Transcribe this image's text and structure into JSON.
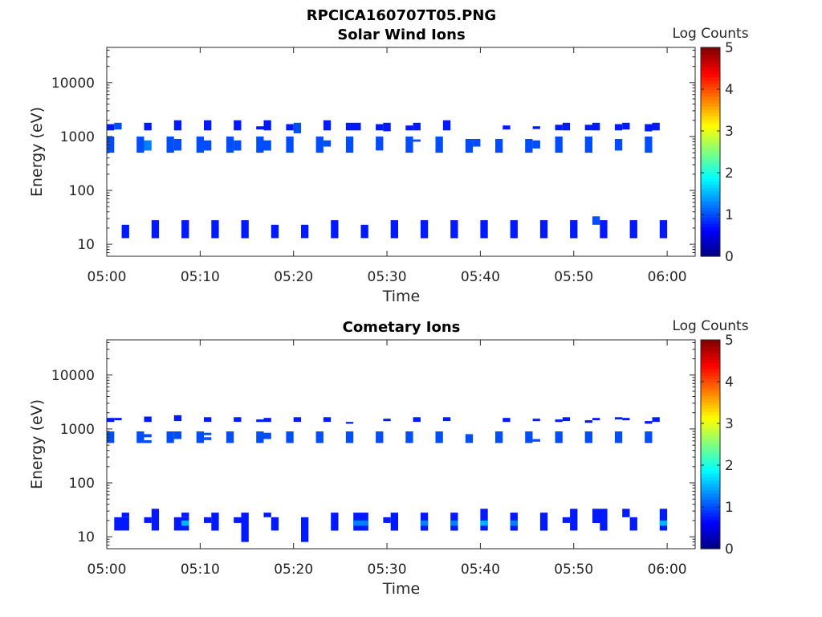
{
  "figure_title": "RPCICA160707T05.PNG",
  "colors": {
    "low": "#00008f",
    "mid": "#0b1fd6",
    "bright": "#1846ff",
    "axis": "#262626"
  },
  "chart_data": [
    {
      "type": "heatmap",
      "title": "Solar Wind Ions",
      "xlabel": "Time",
      "ylabel": "Energy (eV)",
      "y_scale": "log",
      "ylim": [
        6,
        45000
      ],
      "y_ticks": [
        10,
        100,
        1000,
        10000
      ],
      "y_tick_labels": [
        "10",
        "100",
        "1000",
        "10000"
      ],
      "x_range_minutes": [
        0,
        63
      ],
      "x_ticks": [
        0,
        10,
        20,
        30,
        40,
        50,
        60
      ],
      "x_tick_labels": [
        "05:00",
        "05:10",
        "05:20",
        "05:30",
        "05:40",
        "05:50",
        "06:00"
      ],
      "colorbar": {
        "label": "Log Counts",
        "min": 0,
        "max": 5,
        "ticks": [
          "0",
          "1",
          "2",
          "3",
          "4",
          "5"
        ],
        "colormap": "jet"
      },
      "cells": [
        [
          0.0,
          0.8,
          1300,
          1700,
          0.15
        ],
        [
          0.8,
          1.6,
          1350,
          1800,
          0.2
        ],
        [
          0.0,
          0.8,
          500,
          1000,
          0.2
        ],
        [
          3.2,
          4.0,
          500,
          1000,
          0.2
        ],
        [
          4.0,
          4.8,
          550,
          850,
          0.25
        ],
        [
          4.0,
          4.8,
          1300,
          1800,
          0.15
        ],
        [
          6.4,
          7.2,
          500,
          1000,
          0.2
        ],
        [
          7.2,
          8.0,
          1300,
          2000,
          0.15
        ],
        [
          7.2,
          8.0,
          550,
          900,
          0.2
        ],
        [
          9.6,
          10.4,
          500,
          1000,
          0.2
        ],
        [
          10.4,
          11.2,
          1300,
          2000,
          0.15
        ],
        [
          10.4,
          11.2,
          550,
          850,
          0.2
        ],
        [
          12.8,
          13.6,
          500,
          1000,
          0.2
        ],
        [
          13.6,
          14.4,
          1300,
          2000,
          0.15
        ],
        [
          13.6,
          14.4,
          550,
          850,
          0.2
        ],
        [
          16.0,
          16.8,
          1350,
          1550,
          0.15
        ],
        [
          16.0,
          16.8,
          500,
          1000,
          0.2
        ],
        [
          16.8,
          17.6,
          1300,
          2000,
          0.15
        ],
        [
          16.8,
          17.6,
          550,
          850,
          0.2
        ],
        [
          19.2,
          20.0,
          500,
          1000,
          0.2
        ],
        [
          19.2,
          20.0,
          1300,
          1700,
          0.15
        ],
        [
          20.0,
          20.8,
          1150,
          1800,
          0.2
        ],
        [
          22.4,
          23.2,
          500,
          1000,
          0.2
        ],
        [
          23.2,
          24.0,
          1300,
          2000,
          0.15
        ],
        [
          23.2,
          24.0,
          650,
          850,
          0.2
        ],
        [
          25.6,
          26.4,
          500,
          1000,
          0.2
        ],
        [
          25.6,
          27.2,
          1300,
          1800,
          0.15
        ],
        [
          28.8,
          29.6,
          1300,
          1700,
          0.15
        ],
        [
          28.8,
          29.6,
          550,
          1000,
          0.2
        ],
        [
          29.6,
          30.4,
          1250,
          1800,
          0.15
        ],
        [
          32.0,
          32.8,
          1300,
          1600,
          0.15
        ],
        [
          32.0,
          32.8,
          500,
          1000,
          0.2
        ],
        [
          32.8,
          33.6,
          1300,
          1800,
          0.15
        ],
        [
          32.8,
          33.6,
          800,
          880,
          0.2
        ],
        [
          35.2,
          36.0,
          500,
          1000,
          0.2
        ],
        [
          36.0,
          36.8,
          1300,
          2000,
          0.15
        ],
        [
          38.4,
          39.2,
          500,
          900,
          0.2
        ],
        [
          39.2,
          40.0,
          650,
          900,
          0.2
        ],
        [
          41.6,
          42.4,
          500,
          900,
          0.2
        ],
        [
          42.4,
          43.2,
          1350,
          1600,
          0.15
        ],
        [
          44.8,
          45.6,
          500,
          900,
          0.2
        ],
        [
          45.6,
          46.4,
          1380,
          1550,
          0.15
        ],
        [
          45.6,
          46.4,
          600,
          850,
          0.2
        ],
        [
          48.0,
          48.8,
          500,
          1000,
          0.2
        ],
        [
          48.0,
          48.8,
          1300,
          1650,
          0.15
        ],
        [
          48.8,
          49.6,
          1300,
          1800,
          0.15
        ],
        [
          51.2,
          52.0,
          500,
          1000,
          0.2
        ],
        [
          51.2,
          52.0,
          1300,
          1650,
          0.15
        ],
        [
          52.0,
          52.8,
          1300,
          1800,
          0.15
        ],
        [
          54.4,
          55.2,
          1300,
          1700,
          0.15
        ],
        [
          54.4,
          55.2,
          550,
          900,
          0.2
        ],
        [
          55.2,
          56.0,
          1350,
          1800,
          0.15
        ],
        [
          57.6,
          58.4,
          1250,
          1700,
          0.15
        ],
        [
          57.6,
          58.4,
          500,
          1000,
          0.2
        ],
        [
          58.4,
          59.2,
          1300,
          1800,
          0.15
        ],
        [
          1.6,
          2.4,
          13,
          23,
          0.15
        ],
        [
          4.8,
          5.6,
          13,
          28,
          0.15
        ],
        [
          8.0,
          8.8,
          13,
          28,
          0.15
        ],
        [
          11.2,
          12.0,
          13,
          28,
          0.15
        ],
        [
          14.4,
          15.2,
          13,
          28,
          0.15
        ],
        [
          17.6,
          18.4,
          13,
          23,
          0.15
        ],
        [
          20.8,
          21.6,
          13,
          23,
          0.15
        ],
        [
          24.0,
          24.8,
          13,
          28,
          0.15
        ],
        [
          27.2,
          28.0,
          13,
          23,
          0.15
        ],
        [
          30.4,
          31.2,
          13,
          28,
          0.15
        ],
        [
          33.6,
          34.4,
          13,
          28,
          0.15
        ],
        [
          36.8,
          37.6,
          13,
          28,
          0.15
        ],
        [
          40.0,
          40.8,
          13,
          28,
          0.15
        ],
        [
          43.2,
          44.0,
          13,
          28,
          0.15
        ],
        [
          46.4,
          47.2,
          13,
          28,
          0.15
        ],
        [
          49.6,
          50.4,
          13,
          28,
          0.15
        ],
        [
          52.0,
          52.8,
          23,
          33,
          0.2
        ],
        [
          52.8,
          53.6,
          13,
          28,
          0.15
        ],
        [
          56.0,
          56.8,
          13,
          28,
          0.15
        ],
        [
          59.2,
          60.0,
          13,
          28,
          0.15
        ]
      ]
    },
    {
      "type": "heatmap",
      "title": "Cometary Ions",
      "xlabel": "Time",
      "ylabel": "Energy (eV)",
      "y_scale": "log",
      "ylim": [
        6,
        45000
      ],
      "y_ticks": [
        10,
        100,
        1000,
        10000
      ],
      "y_tick_labels": [
        "10",
        "100",
        "1000",
        "10000"
      ],
      "x_range_minutes": [
        0,
        63
      ],
      "x_ticks": [
        0,
        10,
        20,
        30,
        40,
        50,
        60
      ],
      "x_tick_labels": [
        "05:00",
        "05:10",
        "05:20",
        "05:30",
        "05:40",
        "05:50",
        "06:00"
      ],
      "colorbar": {
        "label": "Log Counts",
        "min": 0,
        "max": 5,
        "ticks": [
          "0",
          "1",
          "2",
          "3",
          "4",
          "5"
        ],
        "colormap": "jet"
      },
      "cells": [
        [
          0.0,
          0.8,
          1350,
          1600,
          0.15
        ],
        [
          0.8,
          1.6,
          1450,
          1600,
          0.15
        ],
        [
          0.0,
          0.8,
          550,
          900,
          0.2
        ],
        [
          3.2,
          4.0,
          550,
          900,
          0.2
        ],
        [
          4.0,
          4.8,
          700,
          800,
          0.2
        ],
        [
          4.0,
          4.8,
          550,
          620,
          0.2
        ],
        [
          4.0,
          4.8,
          1350,
          1700,
          0.15
        ],
        [
          6.4,
          7.2,
          550,
          900,
          0.2
        ],
        [
          7.2,
          8.0,
          1400,
          1800,
          0.15
        ],
        [
          7.2,
          8.0,
          650,
          900,
          0.2
        ],
        [
          9.6,
          10.4,
          550,
          900,
          0.2
        ],
        [
          10.4,
          11.2,
          1350,
          1650,
          0.15
        ],
        [
          10.4,
          11.2,
          770,
          850,
          0.2
        ],
        [
          10.4,
          11.2,
          620,
          700,
          0.2
        ],
        [
          12.8,
          13.6,
          550,
          900,
          0.2
        ],
        [
          13.6,
          14.4,
          1350,
          1650,
          0.15
        ],
        [
          16.0,
          16.8,
          1350,
          1500,
          0.15
        ],
        [
          16.0,
          16.8,
          550,
          900,
          0.2
        ],
        [
          16.8,
          17.6,
          1350,
          1600,
          0.15
        ],
        [
          16.8,
          17.6,
          650,
          850,
          0.2
        ],
        [
          19.2,
          20.0,
          550,
          900,
          0.2
        ],
        [
          20.0,
          20.8,
          1350,
          1650,
          0.15
        ],
        [
          22.4,
          23.2,
          550,
          900,
          0.2
        ],
        [
          23.2,
          24.0,
          1350,
          1650,
          0.15
        ],
        [
          25.6,
          26.4,
          550,
          900,
          0.2
        ],
        [
          25.6,
          26.4,
          1250,
          1350,
          0.15
        ],
        [
          28.8,
          29.6,
          550,
          900,
          0.2
        ],
        [
          29.6,
          30.4,
          1400,
          1550,
          0.15
        ],
        [
          32.0,
          32.8,
          550,
          900,
          0.2
        ],
        [
          32.8,
          33.6,
          1350,
          1650,
          0.15
        ],
        [
          35.2,
          36.0,
          550,
          900,
          0.2
        ],
        [
          36.0,
          36.8,
          1400,
          1650,
          0.15
        ],
        [
          38.4,
          39.2,
          550,
          800,
          0.2
        ],
        [
          41.6,
          42.4,
          550,
          900,
          0.2
        ],
        [
          42.4,
          43.2,
          1350,
          1600,
          0.15
        ],
        [
          44.8,
          45.6,
          550,
          900,
          0.2
        ],
        [
          45.6,
          46.4,
          1400,
          1550,
          0.15
        ],
        [
          45.6,
          46.4,
          580,
          650,
          0.2
        ],
        [
          48.0,
          48.8,
          550,
          900,
          0.2
        ],
        [
          48.0,
          48.8,
          1350,
          1500,
          0.15
        ],
        [
          48.8,
          49.6,
          1400,
          1650,
          0.15
        ],
        [
          51.2,
          52.0,
          550,
          900,
          0.2
        ],
        [
          51.2,
          52.0,
          1300,
          1450,
          0.15
        ],
        [
          52.0,
          52.8,
          1450,
          1600,
          0.15
        ],
        [
          54.4,
          55.2,
          550,
          900,
          0.2
        ],
        [
          54.4,
          55.2,
          1500,
          1650,
          0.15
        ],
        [
          55.2,
          56.0,
          1450,
          1600,
          0.15
        ],
        [
          57.6,
          58.4,
          550,
          900,
          0.2
        ],
        [
          57.6,
          58.4,
          1250,
          1400,
          0.15
        ],
        [
          58.4,
          59.2,
          1350,
          1650,
          0.15
        ],
        [
          0.8,
          2.4,
          13,
          23,
          0.15
        ],
        [
          1.6,
          2.4,
          23,
          28,
          0.15
        ],
        [
          4.0,
          4.8,
          18,
          23,
          0.15
        ],
        [
          4.8,
          5.6,
          13,
          33,
          0.15
        ],
        [
          7.2,
          8.8,
          13,
          23,
          0.15
        ],
        [
          8.0,
          8.8,
          16,
          20,
          0.3
        ],
        [
          8.0,
          8.8,
          23,
          28,
          0.15
        ],
        [
          10.4,
          11.2,
          18,
          23,
          0.15
        ],
        [
          11.2,
          12.0,
          13,
          28,
          0.15
        ],
        [
          13.6,
          14.4,
          18,
          23,
          0.15
        ],
        [
          14.4,
          15.2,
          8,
          28,
          0.15
        ],
        [
          16.8,
          17.6,
          23,
          28,
          0.15
        ],
        [
          17.6,
          18.4,
          13,
          23,
          0.15
        ],
        [
          20.8,
          21.6,
          8,
          23,
          0.15
        ],
        [
          24.0,
          24.8,
          13,
          28,
          0.15
        ],
        [
          26.4,
          28.0,
          13,
          28,
          0.15
        ],
        [
          26.4,
          28.0,
          16,
          20,
          0.25
        ],
        [
          29.6,
          30.4,
          18,
          23,
          0.15
        ],
        [
          30.4,
          31.2,
          13,
          28,
          0.15
        ],
        [
          33.6,
          34.4,
          13,
          28,
          0.15
        ],
        [
          33.6,
          34.4,
          16,
          20,
          0.25
        ],
        [
          36.8,
          37.6,
          13,
          28,
          0.15
        ],
        [
          36.8,
          37.6,
          16,
          20,
          0.25
        ],
        [
          40.0,
          40.8,
          13,
          33,
          0.15
        ],
        [
          40.0,
          40.8,
          16,
          20,
          0.3
        ],
        [
          43.2,
          44.0,
          13,
          28,
          0.15
        ],
        [
          43.2,
          44.0,
          16,
          20,
          0.25
        ],
        [
          46.4,
          47.2,
          13,
          28,
          0.15
        ],
        [
          48.8,
          49.6,
          18,
          23,
          0.15
        ],
        [
          49.6,
          50.4,
          13,
          33,
          0.15
        ],
        [
          52.0,
          53.6,
          18,
          33,
          0.15
        ],
        [
          52.8,
          53.6,
          13,
          18,
          0.15
        ],
        [
          55.2,
          56.0,
          23,
          33,
          0.15
        ],
        [
          56.0,
          56.8,
          13,
          23,
          0.15
        ],
        [
          59.2,
          60.0,
          13,
          33,
          0.15
        ],
        [
          59.2,
          60.0,
          16,
          20,
          0.3
        ]
      ]
    }
  ]
}
